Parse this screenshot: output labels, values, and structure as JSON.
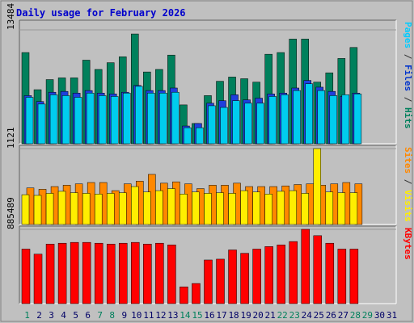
{
  "chart_data": [
    {
      "type": "bar",
      "title": "Daily usage for February 2026",
      "ylabel_parts": [
        {
          "text": "Pages",
          "color": "#00ccff"
        },
        {
          "text": " / ",
          "color": "#333333"
        },
        {
          "text": "Files",
          "color": "#0033cc"
        },
        {
          "text": " / ",
          "color": "#333333"
        },
        {
          "text": "Hits",
          "color": "#00805c"
        }
      ],
      "ymax_label": "13484",
      "ylim": [
        0,
        13484
      ],
      "series": [
        {
          "color": "#00805c",
          "values": [
            10800,
            6400,
            7600,
            7800,
            7800,
            9900,
            8800,
            9600,
            10300,
            13000,
            8500,
            8800,
            10500,
            4600,
            2400,
            5700,
            7400,
            7900,
            7700,
            7300,
            10600,
            10800,
            12400,
            12400,
            7300,
            8400,
            10100,
            11400
          ]
        },
        {
          "color": "#1f3fdd",
          "values": [
            5700,
            5000,
            6100,
            6200,
            6000,
            6300,
            6000,
            5900,
            6100,
            6900,
            6300,
            6300,
            6600,
            2100,
            2400,
            4800,
            5100,
            5800,
            5200,
            5400,
            5900,
            6000,
            6600,
            7500,
            6700,
            6200,
            5600,
            6000
          ]
        },
        {
          "color": "#00ccee",
          "values": [
            5500,
            4700,
            5800,
            5700,
            5500,
            6000,
            5700,
            5600,
            6000,
            6800,
            6000,
            6000,
            6100,
            1900,
            1900,
            4500,
            4300,
            5100,
            4800,
            4800,
            5600,
            5800,
            6300,
            7100,
            6300,
            5700,
            5800,
            5900
          ]
        }
      ],
      "bar_color_alt": [
        "#1a3faa",
        "#006645",
        "#0099cc"
      ]
    },
    {
      "type": "bar",
      "ylabel_parts": [
        {
          "text": "Sites",
          "color": "#ff8800"
        },
        {
          "text": " / ",
          "color": "#333333"
        },
        {
          "text": "Visits",
          "color": "#ffee00"
        }
      ],
      "ymax_label": "1121",
      "ylim": [
        0,
        1121
      ],
      "series": [
        {
          "color": "#ff8800",
          "values": [
            540,
            520,
            560,
            580,
            600,
            620,
            620,
            500,
            600,
            640,
            740,
            610,
            630,
            600,
            530,
            580,
            580,
            610,
            560,
            560,
            560,
            570,
            590,
            600,
            580,
            600,
            620,
            600
          ]
        },
        {
          "color": "#ffee00",
          "values": [
            440,
            430,
            460,
            490,
            470,
            460,
            450,
            460,
            470,
            560,
            480,
            500,
            530,
            450,
            480,
            460,
            470,
            460,
            500,
            480,
            450,
            490,
            500,
            460,
            1121,
            480,
            470,
            470
          ]
        }
      ]
    },
    {
      "type": "bar",
      "ylabel_parts": [
        {
          "text": "KBytes",
          "color": "#ff0000"
        }
      ],
      "ymax_label": "885489",
      "ylim": [
        0,
        885489
      ],
      "series": [
        {
          "color": "#ff0000",
          "values": [
            650000,
            590000,
            710000,
            720000,
            730000,
            730000,
            720000,
            710000,
            720000,
            730000,
            710000,
            720000,
            700000,
            200000,
            240000,
            520000,
            530000,
            640000,
            600000,
            650000,
            680000,
            700000,
            740000,
            885489,
            810000,
            720000,
            650000,
            650000
          ]
        }
      ]
    }
  ],
  "x_ticks": [
    "1",
    "2",
    "3",
    "4",
    "5",
    "6",
    "7",
    "8",
    "9",
    "10",
    "11",
    "12",
    "13",
    "14",
    "15",
    "16",
    "17",
    "18",
    "19",
    "20",
    "21",
    "22",
    "23",
    "24",
    "25",
    "26",
    "27",
    "28",
    "29",
    "30",
    "31"
  ],
  "x_tick_colors": [
    "#00805c",
    "#000066",
    "#000066",
    "#000066",
    "#000066",
    "#000066",
    "#00805c",
    "#00805c",
    "#000066",
    "#000066",
    "#000066",
    "#000066",
    "#000066",
    "#00805c",
    "#00805c",
    "#000066",
    "#000066",
    "#000066",
    "#000066",
    "#000066",
    "#000066",
    "#00805c",
    "#00805c",
    "#000066",
    "#000066",
    "#000066",
    "#000066",
    "#00805c",
    "#00805c",
    "#000066",
    "#000066"
  ],
  "colors": {
    "frame_bg": "#c0c0c0",
    "plot_bg": "#c0c0c0",
    "border_dark": "#606060",
    "border_light": "#ffffff",
    "title": "#0000cc",
    "gridline": "#999999"
  }
}
